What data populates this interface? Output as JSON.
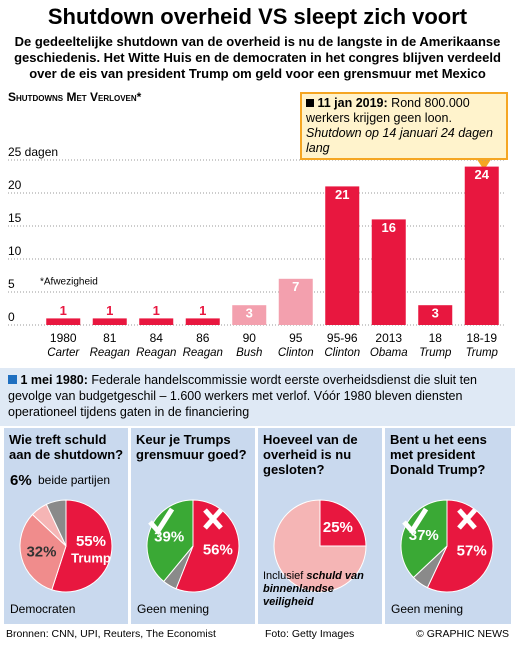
{
  "header": {
    "title": "Shutdown overheid VS sleept zich voort",
    "subtitle": "De gedeeltelijke shutdown van de overheid is nu de langste in de Amerikaanse geschiedenis. Het Witte Huis en de democraten in het congres blijven verdeeld over de eis van president Trump om geld voor een grensmuur met Mexico"
  },
  "chart_data": [
    {
      "type": "bar",
      "title": "Shutdowns Met Verloven*",
      "categories": [
        "1980",
        "81",
        "84",
        "86",
        "90",
        "95",
        "95-96",
        "2013",
        "18",
        "18-19"
      ],
      "sublabels": [
        "Carter",
        "Reagan",
        "Reagan",
        "Reagan",
        "Bush",
        "Clinton",
        "Clinton",
        "Obama",
        "Trump",
        "Trump"
      ],
      "values": [
        1,
        1,
        1,
        1,
        3,
        7,
        21,
        16,
        3,
        24
      ],
      "colors": [
        "#e8173f",
        "#e8173f",
        "#e8173f",
        "#e8173f",
        "#f3a0ae",
        "#f3a0ae",
        "#e8173f",
        "#e8173f",
        "#e8173f",
        "#e8173f"
      ],
      "ylim": [
        0,
        25
      ],
      "yticks": [
        0,
        5,
        10,
        15,
        20,
        {
          "value": 25,
          "label": "25 dagen"
        }
      ],
      "grid": true,
      "note": "*Afwezigheid",
      "callout": {
        "date": "11 jan 2019:",
        "text": "Rond 800.000 werkers krijgen geen loon.",
        "detail": "Shutdown op 14 januari 24 dagen lang"
      }
    },
    {
      "type": "pie",
      "title": "Wie treft schuld aan de shutdown?",
      "categories": [
        "Trump",
        "Democraten",
        "beide partijen",
        null
      ],
      "values": [
        55,
        32,
        6,
        7
      ],
      "value_labels": [
        "55%",
        "32%",
        "6%",
        null
      ],
      "colors": [
        "#e8173f",
        "#f08c8c",
        "#f5b5b5",
        "#8a8a8a"
      ]
    },
    {
      "type": "pie",
      "title": "Keur je Trumps grensmuur goed?",
      "categories": [
        null,
        null,
        "Geen mening"
      ],
      "values": [
        56,
        5,
        39
      ],
      "value_labels": [
        "56%",
        null,
        "39%"
      ],
      "colors": [
        "#e8173f",
        "#8a8a8a",
        "#3aa935"
      ]
    },
    {
      "type": "pie",
      "title": "Hoeveel van de overheid is nu gesloten?",
      "categories": [
        null,
        null
      ],
      "values": [
        25,
        75
      ],
      "value_labels": [
        "25%",
        null
      ],
      "colors": [
        "#e8173f",
        "#f5b5b5"
      ],
      "note": "Inclusief",
      "note_em": "schuld van binnenlandse veiligheid"
    },
    {
      "type": "pie",
      "title": "Bent u het eens met president Donald Trump?",
      "categories": [
        null,
        null,
        "Geen mening"
      ],
      "values": [
        57,
        6,
        37
      ],
      "value_labels": [
        "57%",
        null,
        "37%"
      ],
      "colors": [
        "#e8173f",
        "#8a8a8a",
        "#3aa935"
      ]
    }
  ],
  "info": {
    "date": "1 mei 1980:",
    "text": "Federale handelscommissie wordt eerste overheidsdienst die sluit ten gevolge van budgetgeschil – 1.600 werkers met verlof. Vóór 1980 bleven diensten operationeel tijdens gaten in de financiering"
  },
  "footer": {
    "sources": "Bronnen: CNN, UPI, Reuters, The Economist",
    "photo": "Foto: Getty Images",
    "credit": "© GRAPHIC NEWS"
  }
}
